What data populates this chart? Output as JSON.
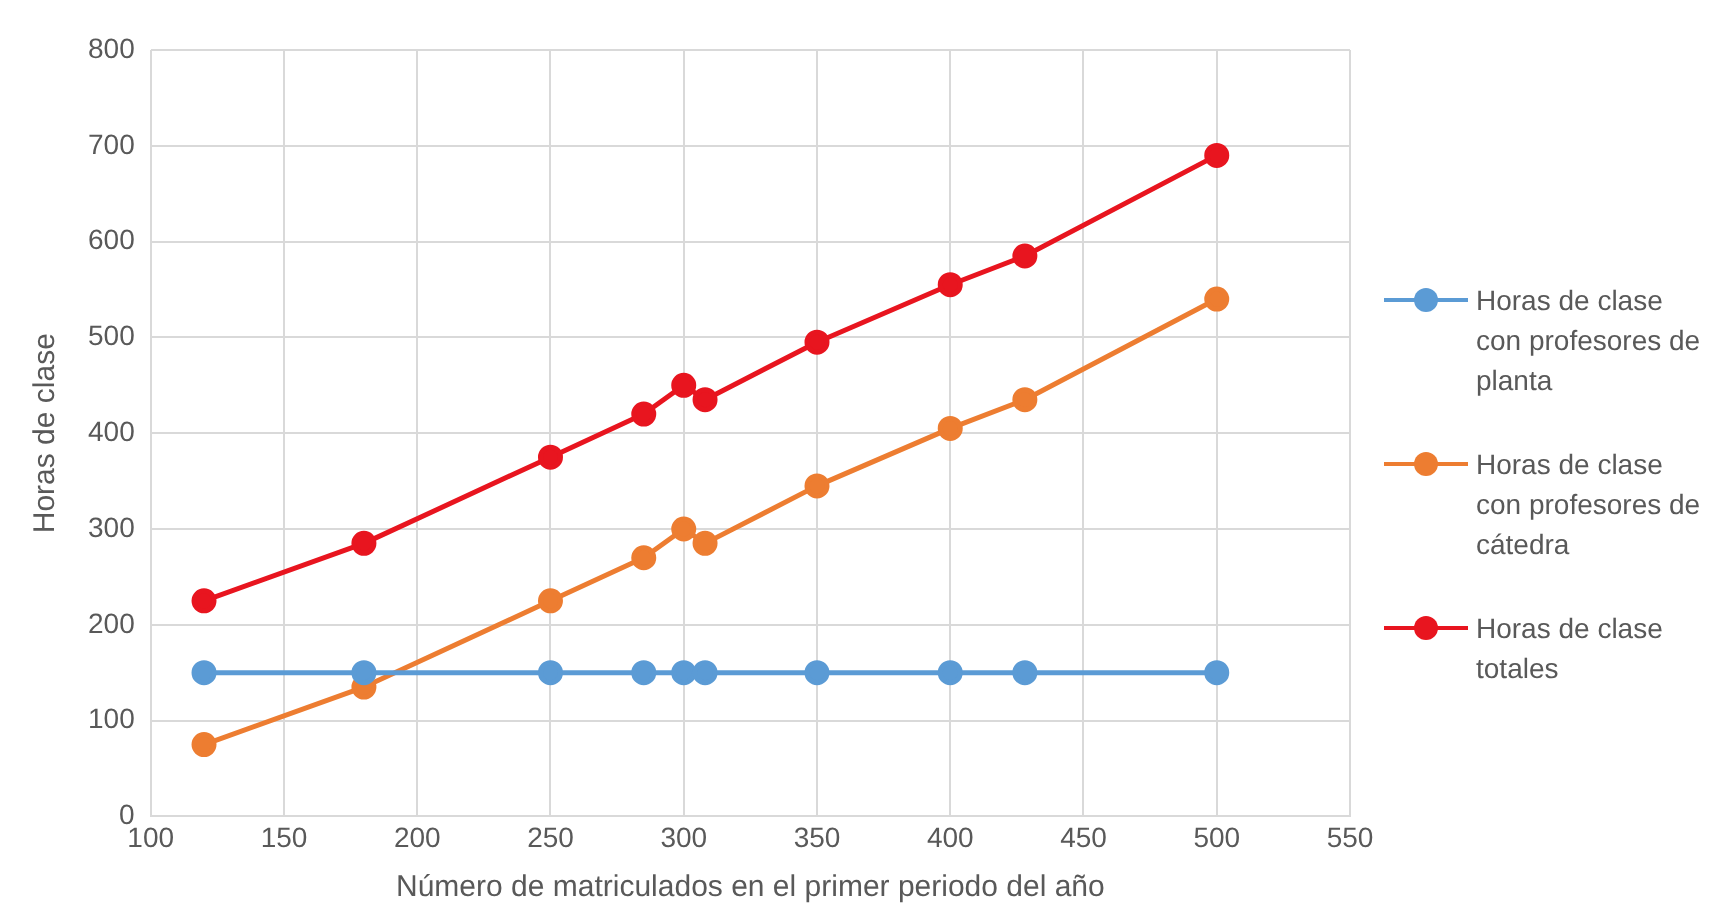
{
  "chart_data": {
    "type": "line",
    "xlabel": "Número de matriculados en el primer periodo del año",
    "ylabel": "Horas de clase",
    "x": [
      120,
      180,
      250,
      285,
      300,
      308,
      350,
      400,
      428,
      500
    ],
    "series": [
      {
        "name": "Horas de clase con profesores de planta",
        "color": "#5b9bd5",
        "values": [
          150,
          150,
          150,
          150,
          150,
          150,
          150,
          150,
          150,
          150
        ]
      },
      {
        "name": "Horas de clase con profesores de cátedra",
        "color": "#ed7d31",
        "values": [
          75,
          135,
          225,
          270,
          300,
          285,
          345,
          405,
          435,
          540
        ]
      },
      {
        "name": "Horas de clase totales",
        "color": "#e8151f",
        "values": [
          225,
          285,
          375,
          420,
          450,
          435,
          495,
          555,
          585,
          690
        ]
      }
    ],
    "xlim": [
      100,
      550
    ],
    "xticks": [
      100,
      150,
      200,
      250,
      300,
      350,
      400,
      450,
      500,
      550
    ],
    "ylim": [
      0,
      800
    ],
    "yticks": [
      0,
      100,
      200,
      300,
      400,
      500,
      600,
      700,
      800
    ],
    "grid": true,
    "legend": "right",
    "marker": "circle",
    "line_style": "solid"
  }
}
